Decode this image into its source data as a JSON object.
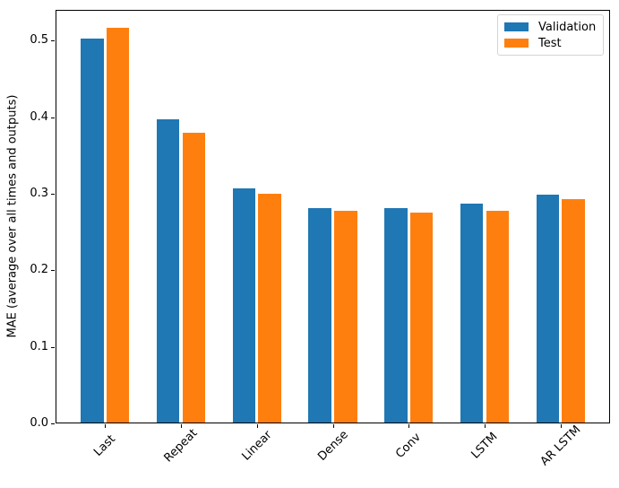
{
  "figure": {
    "background": "#ffffff",
    "axis_color": "#000000"
  },
  "chart_data": {
    "type": "bar",
    "title": "",
    "xlabel": "",
    "ylabel": "MAE (average over all times and outputs)",
    "categories": [
      "Last",
      "Repeat",
      "Linear",
      "Dense",
      "Conv",
      "LSTM",
      "AR LSTM"
    ],
    "series": [
      {
        "name": "Validation",
        "color": "#1f77b4",
        "values": [
          0.501,
          0.396,
          0.306,
          0.28,
          0.28,
          0.286,
          0.298
        ]
      },
      {
        "name": "Test",
        "color": "#ff7f0e",
        "values": [
          0.515,
          0.378,
          0.299,
          0.276,
          0.274,
          0.277,
          0.292
        ]
      }
    ],
    "ylim": [
      0,
      0.54
    ],
    "yticks": [
      0.0,
      0.1,
      0.2,
      0.3,
      0.4,
      0.5
    ],
    "ytick_labels": [
      "0.0",
      "0.1",
      "0.2",
      "0.3",
      "0.4",
      "0.5"
    ],
    "xlim": [
      -0.652,
      6.652
    ],
    "bar_width": 0.3,
    "bar_offsets": [
      -0.17,
      0.17
    ],
    "xtick_rotation_deg": 45,
    "grid": false,
    "legend": {
      "position": "upper right",
      "entries": [
        "Validation",
        "Test"
      ]
    }
  }
}
